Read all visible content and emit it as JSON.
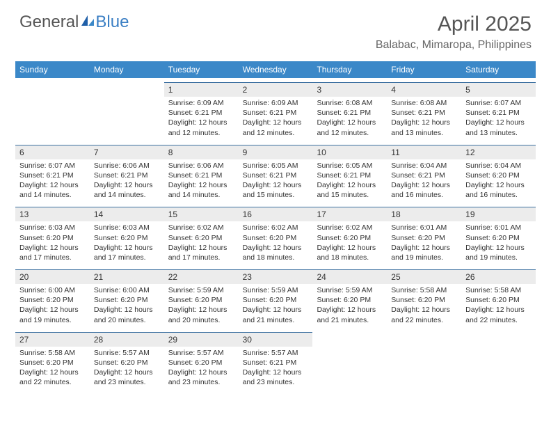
{
  "logo": {
    "word1": "General",
    "word2": "Blue"
  },
  "title": "April 2025",
  "location": "Balabac, Mimaropa, Philippines",
  "colors": {
    "header_bg": "#3b88c8",
    "header_text": "#ffffff",
    "daynum_bg": "#ececec",
    "daynum_border": "#3b6fa0",
    "body_text": "#333333",
    "title_text": "#555555",
    "logo_blue": "#3b7fc4"
  },
  "typography": {
    "title_fontsize": 30,
    "location_fontsize": 16,
    "head_fontsize": 12,
    "body_fontsize": 10.5
  },
  "day_headers": [
    "Sunday",
    "Monday",
    "Tuesday",
    "Wednesday",
    "Thursday",
    "Friday",
    "Saturday"
  ],
  "weeks": [
    [
      null,
      null,
      {
        "n": "1",
        "sr": "6:09 AM",
        "ss": "6:21 PM",
        "dl": "12 hours and 12 minutes."
      },
      {
        "n": "2",
        "sr": "6:09 AM",
        "ss": "6:21 PM",
        "dl": "12 hours and 12 minutes."
      },
      {
        "n": "3",
        "sr": "6:08 AM",
        "ss": "6:21 PM",
        "dl": "12 hours and 12 minutes."
      },
      {
        "n": "4",
        "sr": "6:08 AM",
        "ss": "6:21 PM",
        "dl": "12 hours and 13 minutes."
      },
      {
        "n": "5",
        "sr": "6:07 AM",
        "ss": "6:21 PM",
        "dl": "12 hours and 13 minutes."
      }
    ],
    [
      {
        "n": "6",
        "sr": "6:07 AM",
        "ss": "6:21 PM",
        "dl": "12 hours and 14 minutes."
      },
      {
        "n": "7",
        "sr": "6:06 AM",
        "ss": "6:21 PM",
        "dl": "12 hours and 14 minutes."
      },
      {
        "n": "8",
        "sr": "6:06 AM",
        "ss": "6:21 PM",
        "dl": "12 hours and 14 minutes."
      },
      {
        "n": "9",
        "sr": "6:05 AM",
        "ss": "6:21 PM",
        "dl": "12 hours and 15 minutes."
      },
      {
        "n": "10",
        "sr": "6:05 AM",
        "ss": "6:21 PM",
        "dl": "12 hours and 15 minutes."
      },
      {
        "n": "11",
        "sr": "6:04 AM",
        "ss": "6:21 PM",
        "dl": "12 hours and 16 minutes."
      },
      {
        "n": "12",
        "sr": "6:04 AM",
        "ss": "6:20 PM",
        "dl": "12 hours and 16 minutes."
      }
    ],
    [
      {
        "n": "13",
        "sr": "6:03 AM",
        "ss": "6:20 PM",
        "dl": "12 hours and 17 minutes."
      },
      {
        "n": "14",
        "sr": "6:03 AM",
        "ss": "6:20 PM",
        "dl": "12 hours and 17 minutes."
      },
      {
        "n": "15",
        "sr": "6:02 AM",
        "ss": "6:20 PM",
        "dl": "12 hours and 17 minutes."
      },
      {
        "n": "16",
        "sr": "6:02 AM",
        "ss": "6:20 PM",
        "dl": "12 hours and 18 minutes."
      },
      {
        "n": "17",
        "sr": "6:02 AM",
        "ss": "6:20 PM",
        "dl": "12 hours and 18 minutes."
      },
      {
        "n": "18",
        "sr": "6:01 AM",
        "ss": "6:20 PM",
        "dl": "12 hours and 19 minutes."
      },
      {
        "n": "19",
        "sr": "6:01 AM",
        "ss": "6:20 PM",
        "dl": "12 hours and 19 minutes."
      }
    ],
    [
      {
        "n": "20",
        "sr": "6:00 AM",
        "ss": "6:20 PM",
        "dl": "12 hours and 19 minutes."
      },
      {
        "n": "21",
        "sr": "6:00 AM",
        "ss": "6:20 PM",
        "dl": "12 hours and 20 minutes."
      },
      {
        "n": "22",
        "sr": "5:59 AM",
        "ss": "6:20 PM",
        "dl": "12 hours and 20 minutes."
      },
      {
        "n": "23",
        "sr": "5:59 AM",
        "ss": "6:20 PM",
        "dl": "12 hours and 21 minutes."
      },
      {
        "n": "24",
        "sr": "5:59 AM",
        "ss": "6:20 PM",
        "dl": "12 hours and 21 minutes."
      },
      {
        "n": "25",
        "sr": "5:58 AM",
        "ss": "6:20 PM",
        "dl": "12 hours and 22 minutes."
      },
      {
        "n": "26",
        "sr": "5:58 AM",
        "ss": "6:20 PM",
        "dl": "12 hours and 22 minutes."
      }
    ],
    [
      {
        "n": "27",
        "sr": "5:58 AM",
        "ss": "6:20 PM",
        "dl": "12 hours and 22 minutes."
      },
      {
        "n": "28",
        "sr": "5:57 AM",
        "ss": "6:20 PM",
        "dl": "12 hours and 23 minutes."
      },
      {
        "n": "29",
        "sr": "5:57 AM",
        "ss": "6:20 PM",
        "dl": "12 hours and 23 minutes."
      },
      {
        "n": "30",
        "sr": "5:57 AM",
        "ss": "6:21 PM",
        "dl": "12 hours and 23 minutes."
      },
      null,
      null,
      null
    ]
  ],
  "labels": {
    "sunrise": "Sunrise: ",
    "sunset": "Sunset: ",
    "daylight": "Daylight: "
  }
}
